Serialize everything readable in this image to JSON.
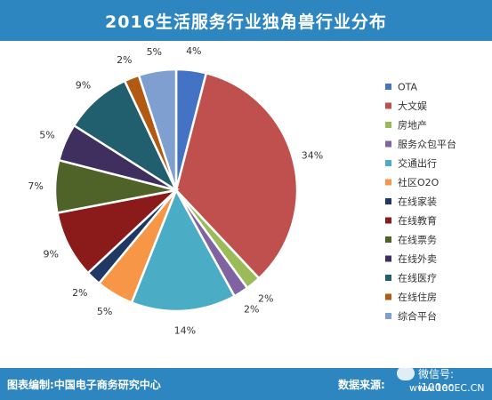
{
  "title": "2016生活服务行业独角兽行业分布",
  "footer": {
    "credit": "图表编制:中国电子商务研究中心",
    "source": "数据来源:",
    "watermark_line1": "微信号: i100ec",
    "watermark_line2": "www.100EC.CN"
  },
  "colors": {
    "header": "#2e86c1",
    "background": "#ffffff"
  },
  "chart_data": {
    "type": "pie",
    "title": "2016生活服务行业独角兽行业分布",
    "legend_position": "right",
    "slices": [
      {
        "name": "OTA",
        "value": 4,
        "label": "4%",
        "color": "#4472c4"
      },
      {
        "name": "大文娱",
        "value": 34,
        "label": "34%",
        "color": "#c0504d"
      },
      {
        "name": "房地产",
        "value": 2,
        "label": "2%",
        "color": "#9bbb59"
      },
      {
        "name": "服务众包平台",
        "value": 2,
        "label": "2%",
        "color": "#8064a2"
      },
      {
        "name": "交通出行",
        "value": 14,
        "label": "14%",
        "color": "#4bacc6"
      },
      {
        "name": "社区O2O",
        "value": 5,
        "label": "5%",
        "color": "#f79646"
      },
      {
        "name": "在线家装",
        "value": 2,
        "label": "2%",
        "color": "#1f3864"
      },
      {
        "name": "在线教育",
        "value": 9,
        "label": "9%",
        "color": "#8b1a1a"
      },
      {
        "name": "在线票务",
        "value": 7,
        "label": "7%",
        "color": "#4f6228"
      },
      {
        "name": "在线外卖",
        "value": 5,
        "label": "5%",
        "color": "#3f2f5f"
      },
      {
        "name": "在线医疗",
        "value": 9,
        "label": "9%",
        "color": "#215f6e"
      },
      {
        "name": "在线住房",
        "value": 2,
        "label": "2%",
        "color": "#b35a12"
      },
      {
        "name": "综合平台",
        "value": 5,
        "label": "5%",
        "color": "#7f9fd1"
      }
    ]
  }
}
